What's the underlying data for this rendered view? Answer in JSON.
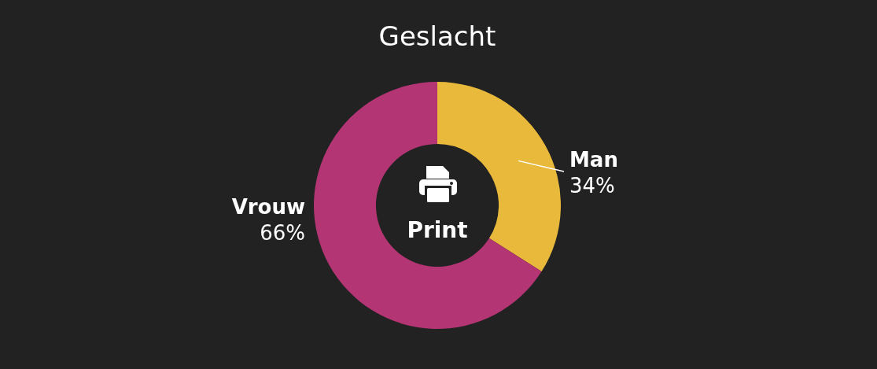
{
  "chart_data": {
    "type": "donut",
    "title": "Geslacht",
    "categories": [
      "Man",
      "Vrouw"
    ],
    "values": [
      34,
      66
    ],
    "colors": [
      "#e9b93b",
      "#b43574"
    ],
    "value_labels": [
      "34%",
      "66%"
    ],
    "annotations": [
      "Print"
    ]
  }
}
